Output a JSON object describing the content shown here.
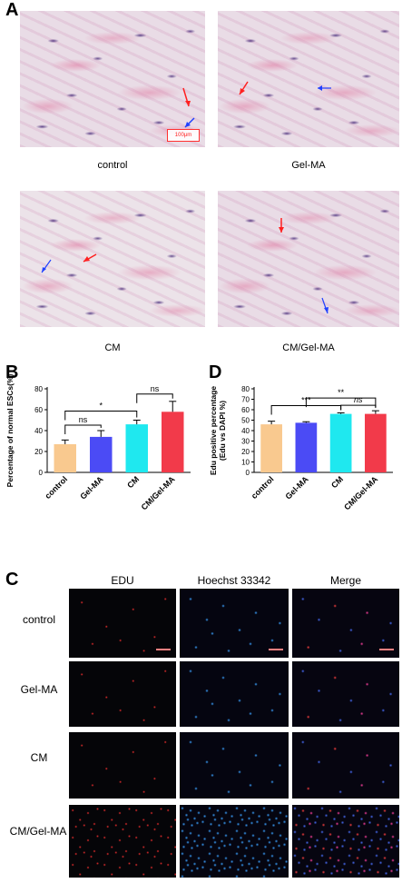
{
  "panels": {
    "a": {
      "letter": "A",
      "scale_label": "100μm",
      "captions": [
        "control",
        "Gel-MA",
        "CM",
        "CM/Gel-MA"
      ]
    },
    "b": {
      "letter": "B"
    },
    "c": {
      "letter": "C",
      "columns": [
        "EDU",
        "Hoechst 33342",
        "Merge"
      ],
      "rows": [
        "control",
        "Gel-MA",
        "CM",
        "CM/Gel-MA"
      ]
    },
    "d": {
      "letter": "D"
    }
  },
  "chart_data": [
    {
      "type": "bar",
      "panel": "B",
      "categories": [
        "control",
        "Gel-MA",
        "CM",
        "CM/Gel-MA"
      ],
      "values": [
        27,
        34,
        46,
        58
      ],
      "errors": [
        4,
        6,
        4,
        10
      ],
      "colors": [
        "#f9c98f",
        "#4b4bf5",
        "#1fe8ef",
        "#f23a4a"
      ],
      "ylabel": "Percentage of normal ESCs(%)",
      "ylim": [
        0,
        80
      ],
      "yticks": [
        0,
        20,
        40,
        60,
        80
      ],
      "significance": [
        {
          "from": 0,
          "to": 1,
          "label": "ns"
        },
        {
          "from": 0,
          "to": 2,
          "label": "*"
        },
        {
          "from": 2,
          "to": 3,
          "label": "ns"
        }
      ]
    },
    {
      "type": "bar",
      "panel": "D",
      "categories": [
        "control",
        "Gel-MA",
        "CM",
        "CM/Gel-MA"
      ],
      "values": [
        46,
        47.5,
        56,
        56
      ],
      "errors": [
        3,
        1,
        1,
        3
      ],
      "colors": [
        "#f9c98f",
        "#4b4bf5",
        "#1fe8ef",
        "#f23a4a"
      ],
      "ylabel": "Edu positive percentage\n(Edu vs DAPI %)",
      "ylim": [
        0,
        80
      ],
      "yticks": [
        0,
        10,
        20,
        30,
        40,
        50,
        60,
        70,
        80
      ],
      "significance": [
        {
          "from": 0,
          "to": 2,
          "label": "***"
        },
        {
          "from": 1,
          "to": 3,
          "label": "**"
        },
        {
          "from": 2,
          "to": 3,
          "label": "ns"
        }
      ]
    }
  ]
}
